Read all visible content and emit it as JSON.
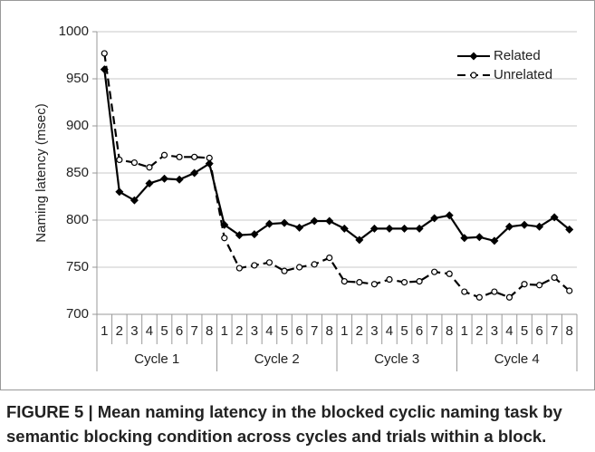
{
  "chart_data": {
    "type": "line",
    "y_label": "Naming latency (msec)",
    "categories": [
      "1",
      "2",
      "3",
      "4",
      "5",
      "6",
      "7",
      "8",
      "1",
      "2",
      "3",
      "4",
      "5",
      "6",
      "7",
      "8",
      "1",
      "2",
      "3",
      "4",
      "5",
      "6",
      "7",
      "8",
      "1",
      "2",
      "3",
      "4",
      "5",
      "6",
      "7",
      "8"
    ],
    "category_groups": [
      "Cycle 1",
      "Cycle 2",
      "Cycle 3",
      "Cycle 4"
    ],
    "series": [
      {
        "name": "Related",
        "color": "#000000",
        "marker": "diamond",
        "dashed": false,
        "values": [
          960,
          830,
          821,
          839,
          844,
          843,
          850,
          860,
          795,
          784,
          785,
          796,
          797,
          792,
          799,
          799,
          791,
          779,
          791,
          791,
          791,
          791,
          802,
          805,
          781,
          782,
          778,
          793,
          795,
          793,
          803,
          790
        ]
      },
      {
        "name": "Unrelated",
        "color": "#000000",
        "marker": "circle-open",
        "dashed": true,
        "values": [
          977,
          864,
          861,
          856,
          869,
          867,
          867,
          866,
          781,
          749,
          752,
          755,
          746,
          750,
          753,
          760,
          735,
          734,
          732,
          737,
          734,
          735,
          745,
          743,
          724,
          718,
          724,
          718,
          732,
          731,
          739,
          725
        ]
      }
    ],
    "ylim": [
      700,
      1000
    ],
    "yticks": [
      700,
      750,
      800,
      850,
      900,
      950,
      1000
    ],
    "grid": true,
    "legend": "upper right",
    "caption": [
      "FIGURE 5 | Mean naming latency in the blocked cyclic naming task by",
      "semantic blocking condition across cycles and trials within a block."
    ]
  }
}
